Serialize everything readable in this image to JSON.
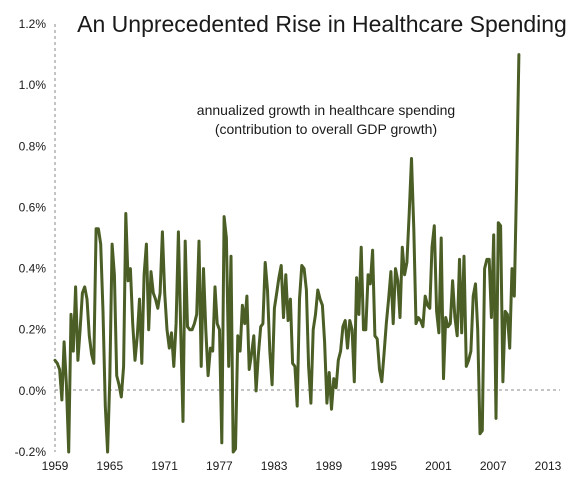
{
  "chart_data": {
    "type": "line",
    "title": "An Unprecedented Rise in Healthcare Spending",
    "annotation_lines": [
      "annualized growth in healthcare spending",
      "(contribution to overall GDP growth)"
    ],
    "x_tick_labels": [
      "1959",
      "1965",
      "1971",
      "1977",
      "1983",
      "1989",
      "1995",
      "2001",
      "2007",
      "2013"
    ],
    "y_tick_labels": [
      "-0.2%",
      "0.0%",
      "0.2%",
      "0.4%",
      "0.6%",
      "0.8%",
      "1.0%",
      "1.2%"
    ],
    "ylim": [
      -0.2,
      1.2
    ],
    "xlim": [
      1959.0,
      2014.25
    ],
    "color": "#4b5e26",
    "grid": false,
    "series": [
      {
        "values": [
          [
            1959.0,
            0.1
          ],
          [
            1959.25,
            0.09
          ],
          [
            1959.5,
            0.07
          ],
          [
            1959.75,
            -0.03
          ],
          [
            1960.0,
            0.16
          ],
          [
            1960.25,
            0.02
          ],
          [
            1960.5,
            -0.2
          ],
          [
            1960.75,
            0.25
          ],
          [
            1961.0,
            0.13
          ],
          [
            1961.25,
            0.34
          ],
          [
            1961.5,
            0.1
          ],
          [
            1961.75,
            0.2
          ],
          [
            1962.0,
            0.32
          ],
          [
            1962.25,
            0.34
          ],
          [
            1962.5,
            0.3
          ],
          [
            1962.75,
            0.18
          ],
          [
            1963.0,
            0.12
          ],
          [
            1963.25,
            0.09
          ],
          [
            1963.5,
            0.53
          ],
          [
            1963.75,
            0.53
          ],
          [
            1964.0,
            0.48
          ],
          [
            1964.25,
            0.26
          ],
          [
            1964.5,
            -0.05
          ],
          [
            1964.75,
            -0.2
          ],
          [
            1965.0,
            0.04
          ],
          [
            1965.25,
            0.48
          ],
          [
            1965.5,
            0.38
          ],
          [
            1965.75,
            0.05
          ],
          [
            1966.0,
            0.02
          ],
          [
            1966.25,
            -0.02
          ],
          [
            1966.5,
            0.08
          ],
          [
            1966.75,
            0.58
          ],
          [
            1967.0,
            0.36
          ],
          [
            1967.25,
            0.4
          ],
          [
            1967.5,
            0.22
          ],
          [
            1967.75,
            0.1
          ],
          [
            1968.0,
            0.18
          ],
          [
            1968.25,
            0.3
          ],
          [
            1968.5,
            0.09
          ],
          [
            1968.75,
            0.38
          ],
          [
            1969.0,
            0.48
          ],
          [
            1969.25,
            0.2
          ],
          [
            1969.5,
            0.39
          ],
          [
            1969.75,
            0.32
          ],
          [
            1970.0,
            0.3
          ],
          [
            1970.25,
            0.27
          ],
          [
            1970.5,
            0.32
          ],
          [
            1970.75,
            0.52
          ],
          [
            1971.0,
            0.32
          ],
          [
            1971.25,
            0.2
          ],
          [
            1971.5,
            0.14
          ],
          [
            1971.75,
            0.19
          ],
          [
            1972.0,
            0.08
          ],
          [
            1972.25,
            0.22
          ],
          [
            1972.5,
            0.52
          ],
          [
            1972.75,
            0.2
          ],
          [
            1973.0,
            -0.1
          ],
          [
            1973.25,
            0.49
          ],
          [
            1973.5,
            0.21
          ],
          [
            1973.75,
            0.2
          ],
          [
            1974.0,
            0.2
          ],
          [
            1974.25,
            0.22
          ],
          [
            1974.5,
            0.25
          ],
          [
            1974.75,
            0.49
          ],
          [
            1975.0,
            0.08
          ],
          [
            1975.25,
            0.4
          ],
          [
            1975.5,
            0.2
          ],
          [
            1975.75,
            0.05
          ],
          [
            1976.0,
            0.14
          ],
          [
            1976.25,
            0.13
          ],
          [
            1976.5,
            0.34
          ],
          [
            1976.75,
            0.22
          ],
          [
            1977.0,
            0.2
          ],
          [
            1977.25,
            -0.17
          ],
          [
            1977.5,
            0.57
          ],
          [
            1977.75,
            0.5
          ],
          [
            1978.0,
            0.08
          ],
          [
            1978.25,
            0.44
          ],
          [
            1978.5,
            -0.2
          ],
          [
            1978.75,
            -0.19
          ],
          [
            1979.0,
            0.18
          ],
          [
            1979.25,
            0.13
          ],
          [
            1979.5,
            0.28
          ],
          [
            1979.75,
            0.22
          ],
          [
            1980.0,
            0.31
          ],
          [
            1980.25,
            0.07
          ],
          [
            1980.5,
            0.12
          ],
          [
            1980.75,
            0.18
          ],
          [
            1981.0,
            0.0
          ],
          [
            1981.25,
            0.12
          ],
          [
            1981.5,
            0.21
          ],
          [
            1981.75,
            0.22
          ],
          [
            1982.0,
            0.42
          ],
          [
            1982.25,
            0.33
          ],
          [
            1982.5,
            0.13
          ],
          [
            1982.75,
            0.02
          ],
          [
            1983.0,
            0.27
          ],
          [
            1983.25,
            0.32
          ],
          [
            1983.5,
            0.37
          ],
          [
            1983.75,
            0.41
          ],
          [
            1984.0,
            0.24
          ],
          [
            1984.25,
            0.38
          ],
          [
            1984.5,
            0.23
          ],
          [
            1984.75,
            0.3
          ],
          [
            1985.0,
            0.09
          ],
          [
            1985.25,
            0.08
          ],
          [
            1985.5,
            -0.05
          ],
          [
            1985.75,
            0.3
          ],
          [
            1986.0,
            0.41
          ],
          [
            1986.25,
            0.4
          ],
          [
            1986.5,
            0.33
          ],
          [
            1986.75,
            0.08
          ],
          [
            1987.0,
            -0.04
          ],
          [
            1987.25,
            0.2
          ],
          [
            1987.5,
            0.25
          ],
          [
            1987.75,
            0.33
          ],
          [
            1988.0,
            0.3
          ],
          [
            1988.25,
            0.28
          ],
          [
            1988.5,
            0.16
          ],
          [
            1988.75,
            -0.04
          ],
          [
            1989.0,
            0.06
          ],
          [
            1989.25,
            -0.06
          ],
          [
            1989.5,
            0.04
          ],
          [
            1989.75,
            0.01
          ],
          [
            1990.0,
            0.1
          ],
          [
            1990.25,
            0.13
          ],
          [
            1990.5,
            0.21
          ],
          [
            1990.75,
            0.23
          ],
          [
            1991.0,
            0.14
          ],
          [
            1991.25,
            0.23
          ],
          [
            1991.5,
            0.2
          ],
          [
            1991.75,
            0.03
          ],
          [
            1992.0,
            0.37
          ],
          [
            1992.25,
            0.25
          ],
          [
            1992.5,
            0.47
          ],
          [
            1992.75,
            0.2
          ],
          [
            1993.0,
            0.2
          ],
          [
            1993.25,
            0.38
          ],
          [
            1993.5,
            0.35
          ],
          [
            1993.75,
            0.46
          ],
          [
            1994.0,
            0.18
          ],
          [
            1994.25,
            0.17
          ],
          [
            1994.5,
            0.07
          ],
          [
            1994.75,
            0.03
          ],
          [
            1995.0,
            0.12
          ],
          [
            1995.25,
            0.22
          ],
          [
            1995.5,
            0.3
          ],
          [
            1995.75,
            0.39
          ],
          [
            1996.0,
            0.22
          ],
          [
            1996.25,
            0.4
          ],
          [
            1996.5,
            0.36
          ],
          [
            1996.75,
            0.24
          ],
          [
            1997.0,
            0.47
          ],
          [
            1997.25,
            0.38
          ],
          [
            1997.5,
            0.42
          ],
          [
            1997.75,
            0.58
          ],
          [
            1998.0,
            0.76
          ],
          [
            1998.25,
            0.53
          ],
          [
            1998.5,
            0.22
          ],
          [
            1998.75,
            0.24
          ],
          [
            1999.0,
            0.23
          ],
          [
            1999.25,
            0.21
          ],
          [
            1999.5,
            0.31
          ],
          [
            1999.75,
            0.28
          ],
          [
            2000.0,
            0.27
          ],
          [
            2000.25,
            0.47
          ],
          [
            2000.5,
            0.54
          ],
          [
            2000.75,
            0.26
          ],
          [
            2001.0,
            0.19
          ],
          [
            2001.25,
            0.5
          ],
          [
            2001.5,
            0.04
          ],
          [
            2001.75,
            0.24
          ],
          [
            2002.0,
            0.21
          ],
          [
            2002.25,
            0.22
          ],
          [
            2002.5,
            0.36
          ],
          [
            2002.75,
            0.24
          ],
          [
            2003.0,
            0.18
          ],
          [
            2003.25,
            0.43
          ],
          [
            2003.5,
            0.19
          ],
          [
            2003.75,
            0.44
          ],
          [
            2004.0,
            0.08
          ],
          [
            2004.25,
            0.1
          ],
          [
            2004.5,
            0.13
          ],
          [
            2004.75,
            0.31
          ],
          [
            2005.0,
            0.35
          ],
          [
            2005.25,
            0.2
          ],
          [
            2005.5,
            -0.14
          ],
          [
            2005.75,
            -0.13
          ],
          [
            2006.0,
            0.4
          ],
          [
            2006.25,
            0.43
          ],
          [
            2006.5,
            0.43
          ],
          [
            2006.75,
            0.24
          ],
          [
            2007.0,
            0.51
          ],
          [
            2007.25,
            -0.09
          ],
          [
            2007.5,
            0.55
          ],
          [
            2007.75,
            0.54
          ],
          [
            2008.0,
            0.03
          ],
          [
            2008.25,
            0.26
          ],
          [
            2008.5,
            0.25
          ],
          [
            2008.75,
            0.14
          ],
          [
            2009.0,
            0.4
          ],
          [
            2009.25,
            0.31
          ],
          [
            2009.5,
            0.68
          ],
          [
            2009.75,
            1.1
          ]
        ]
      }
    ]
  }
}
